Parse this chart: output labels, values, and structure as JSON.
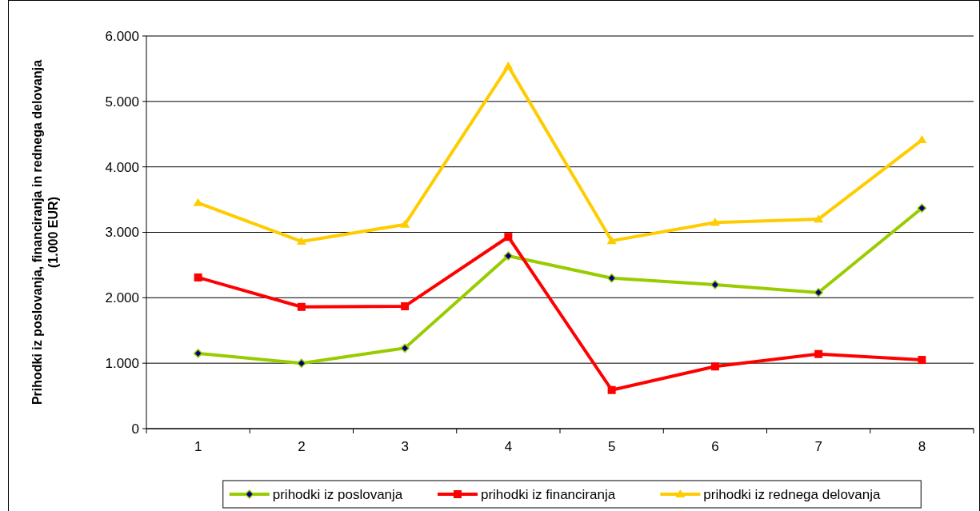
{
  "chart_data": {
    "type": "line",
    "ylabel": "Prihodki iz poslovanja, financiranja in rednega delovanja\n(1.000 EUR)",
    "categories": [
      "1",
      "2",
      "3",
      "4",
      "5",
      "6",
      "7",
      "8"
    ],
    "series": [
      {
        "name": "prihodki iz poslovanja",
        "color": "#99cc00",
        "marker": "diamond",
        "values": [
          1150,
          1000,
          1230,
          2640,
          2300,
          2200,
          2080,
          3370
        ]
      },
      {
        "name": "prihodki iz financiranja",
        "color": "#ff0000",
        "marker": "square",
        "values": [
          2310,
          1860,
          1870,
          2930,
          590,
          950,
          1140,
          1050
        ]
      },
      {
        "name": "prihodki iz rednega delovanja",
        "color": "#ffcc00",
        "marker": "triangle",
        "values": [
          3450,
          2860,
          3120,
          5540,
          2870,
          3150,
          3200,
          4410
        ]
      }
    ],
    "ylim": [
      0,
      6000
    ],
    "yticks": [
      0,
      {
        "value": 1000,
        "label": "1.000"
      },
      {
        "value": 2000,
        "label": "2.000"
      },
      {
        "value": 3000,
        "label": "3.000"
      },
      {
        "value": 4000,
        "label": "4.000"
      },
      {
        "value": 5000,
        "label": "5.000"
      },
      {
        "value": 6000,
        "label": "6.000"
      }
    ],
    "grid": "y",
    "legend": "bottom",
    "line_style": "solid"
  }
}
